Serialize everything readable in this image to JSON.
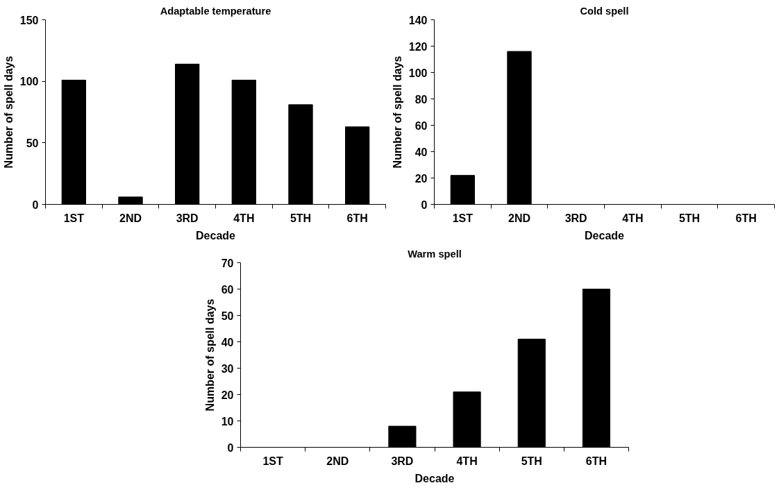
{
  "chart_data": [
    {
      "type": "bar",
      "title": "Adaptable temperature",
      "xlabel": "Decade",
      "ylabel": "Number of spell days",
      "categories": [
        "1ST",
        "2ND",
        "3RD",
        "4TH",
        "5TH",
        "6TH"
      ],
      "values": [
        101,
        6,
        114,
        101,
        81,
        63
      ],
      "color": "#000000",
      "ylim": [
        0,
        150
      ],
      "yticks": [
        0,
        50,
        100,
        150
      ],
      "grid": false
    },
    {
      "type": "bar",
      "title": "Cold spell",
      "xlabel": "Decade",
      "ylabel": "Number of spell days",
      "categories": [
        "1ST",
        "2ND",
        "3RD",
        "4TH",
        "5TH",
        "6TH"
      ],
      "values": [
        22,
        116,
        0,
        0,
        0,
        0
      ],
      "color": "#000000",
      "ylim": [
        0,
        140
      ],
      "yticks": [
        0,
        20,
        40,
        60,
        80,
        100,
        120,
        140
      ],
      "grid": false
    },
    {
      "type": "bar",
      "title": "Warm spell",
      "xlabel": "Decade",
      "ylabel": "Number of spell days",
      "categories": [
        "1ST",
        "2ND",
        "3RD",
        "4TH",
        "5TH",
        "6TH"
      ],
      "values": [
        0,
        0,
        8,
        21,
        41,
        60
      ],
      "color": "#000000",
      "ylim": [
        0,
        70
      ],
      "yticks": [
        0,
        10,
        20,
        30,
        40,
        50,
        60,
        70
      ],
      "grid": false
    }
  ]
}
